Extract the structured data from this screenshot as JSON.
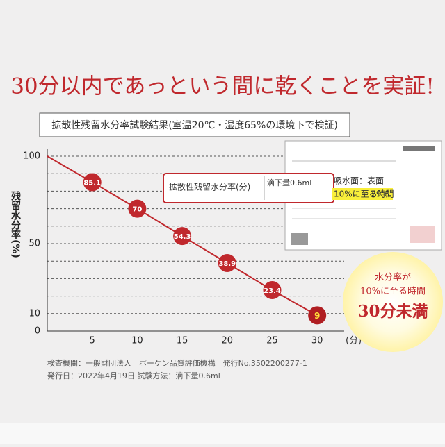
{
  "chart_data": {
    "type": "line",
    "title": "30分以内であっという間に乾くことを実証!",
    "subtitle": "拡散性残留水分率試験結果(室温20℃・湿度65%の環境下で検証)",
    "y_label": "残留水分率(%)",
    "x_label": "(分)",
    "x": [
      0,
      5,
      10,
      15,
      20,
      25,
      30
    ],
    "values": [
      100,
      85.1,
      70,
      54.3,
      38.9,
      23.4,
      9
    ],
    "color": "#c0282d",
    "xlim": [
      0,
      33
    ],
    "xticks": [
      5,
      10,
      15,
      20,
      25,
      30
    ],
    "ylim": [
      0,
      100
    ],
    "yticks": [
      0,
      10,
      {
        "value": 20,
        "label": null
      },
      {
        "value": 30,
        "label": null
      },
      {
        "value": 40,
        "label": null
      },
      50,
      {
        "value": 60,
        "label": null
      },
      {
        "value": 70,
        "label": null
      },
      {
        "value": 80,
        "label": null
      },
      {
        "value": 90,
        "label": null
      },
      100
    ],
    "grid": true,
    "callout": {
      "row_label": "拡散性残留水分率(分)",
      "amount": "滴下量0.6mL",
      "surface": "吸水面：表面",
      "time_label": "10%に至る時間",
      "time_value": "29.6"
    },
    "badge": {
      "line1": "水分率が",
      "line2": "10%に至る時間",
      "line3": "30分未満"
    },
    "notes": [
      "検査機関：一般財団法人　ボーケン品質評価機構　発行No.3502200277-1",
      "発行日：2022年4月19日 試験方法：滴下量0.6ml"
    ]
  }
}
